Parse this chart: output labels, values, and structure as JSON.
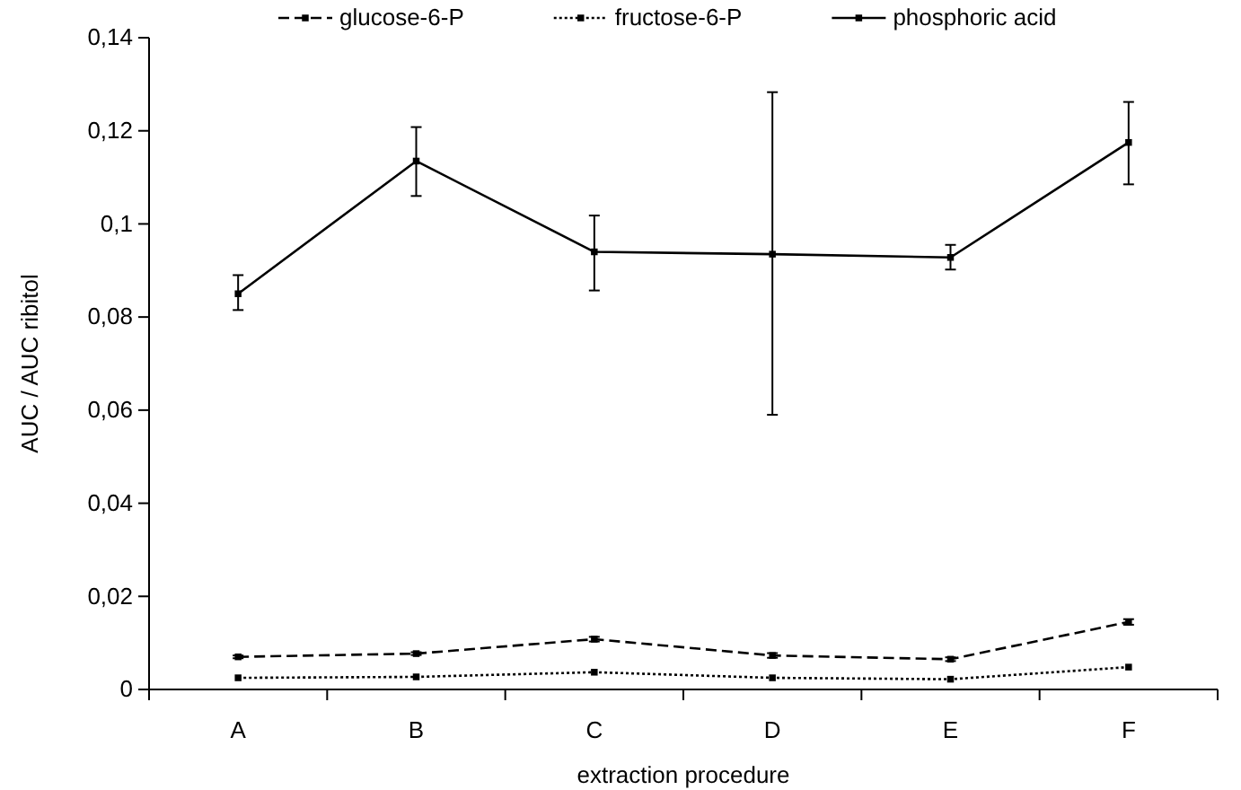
{
  "chart_data": {
    "type": "line",
    "xlabel": "extraction procedure",
    "ylabel": "AUC / AUC ribitol",
    "categories": [
      "A",
      "B",
      "C",
      "D",
      "E",
      "F"
    ],
    "series": [
      {
        "name": "glucose-6-P",
        "color": "#000000",
        "line_style": "dashed",
        "values": [
          0.007,
          0.0077,
          0.0108,
          0.0073,
          0.0065,
          0.0145
        ],
        "errors": [
          0.0003,
          0.0003,
          0.0005,
          0.0005,
          0.0004,
          0.0006
        ]
      },
      {
        "name": "fructose-6-P",
        "color": "#000000",
        "line_style": "dotted",
        "values": [
          0.0025,
          0.0027,
          0.0037,
          0.0025,
          0.0022,
          0.0048
        ]
      },
      {
        "name": "phosphoric acid",
        "color": "#000000",
        "line_style": "solid",
        "values": [
          0.085,
          0.1135,
          0.094,
          0.0935,
          0.0928,
          0.1175
        ],
        "errors": [
          [
            0.0815,
            0.089
          ],
          [
            0.106,
            0.1208
          ],
          [
            0.0857,
            0.1018
          ],
          [
            0.059,
            0.1283
          ],
          [
            0.0902,
            0.0955
          ],
          [
            0.1085,
            0.1262
          ]
        ]
      }
    ],
    "ylim": [
      0,
      0.14
    ],
    "yticks": [
      0,
      {
        "value": 0.02,
        "label": "0,02"
      },
      {
        "value": 0.04,
        "label": "0,04"
      },
      {
        "value": 0.06,
        "label": "0,06"
      },
      {
        "value": 0.08,
        "label": "0,08"
      },
      {
        "value": 0.1,
        "label": "0,1"
      },
      {
        "value": 0.12,
        "label": "0,12"
      },
      {
        "value": 0.14,
        "label": "0,14"
      }
    ],
    "grid": false,
    "legend": "top",
    "marker": "square"
  }
}
